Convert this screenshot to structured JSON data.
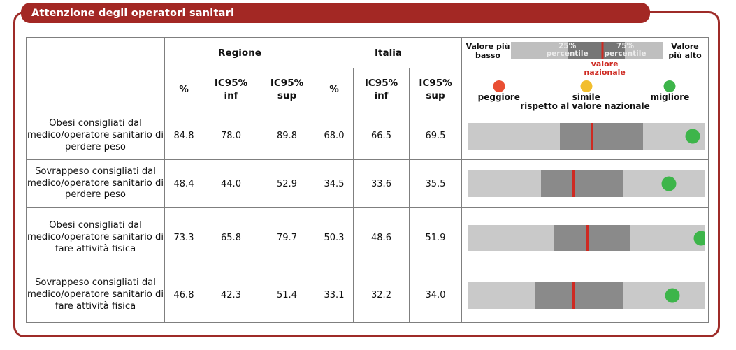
{
  "title": "Attenzione degli operatori sanitari",
  "header": {
    "regione": "Regione",
    "italia": "Italia",
    "pct": "%",
    "ic_inf": "IC95%\ninf",
    "ic_sup": "IC95%\nsup"
  },
  "legend": {
    "left_label": "Valore più basso",
    "right_label": "Valore più alto",
    "q25_label": "25% percentile",
    "q75_label": "75% percentile",
    "national_label": "valore nazionale",
    "footnote": "rispetto al valore nazionale",
    "dots": [
      {
        "color": "red",
        "label": "peggiore"
      },
      {
        "color": "yellow",
        "label": "simile"
      },
      {
        "color": "green",
        "label": "migliore"
      }
    ],
    "bar": {
      "q25_pct": 37,
      "q75_pct": 75,
      "national_pct": 60
    }
  },
  "colors": {
    "accent_red": "#A32824",
    "national_line": "#CE2A22",
    "red": "#E94F33",
    "yellow": "#F2BE2E",
    "green": "#3DB54A",
    "bar_light": "#C9C9C9",
    "bar_dark": "#8A8A8A"
  },
  "rows": [
    {
      "label": "Obesi consigliati dal medico/operatore sanitario di perdere peso",
      "regione": {
        "pct": "84.8",
        "inf": "78.0",
        "sup": "89.8"
      },
      "italia": {
        "pct": "68.0",
        "inf": "66.5",
        "sup": "69.5"
      },
      "bar": {
        "q25_pct": 39,
        "q75_pct": 74,
        "national_pct": 52.5,
        "dot_pct": 95,
        "dot_color": "green"
      }
    },
    {
      "label": "Sovrappeso consigliati dal medico/operatore sanitario di perdere peso",
      "regione": {
        "pct": "48.4",
        "inf": "44.0",
        "sup": "52.9"
      },
      "italia": {
        "pct": "34.5",
        "inf": "33.6",
        "sup": "35.5"
      },
      "bar": {
        "q25_pct": 31,
        "q75_pct": 65.5,
        "national_pct": 44.7,
        "dot_pct": 85,
        "dot_color": "green"
      }
    },
    {
      "label": "Obesi consigliati dal medico/operatore sanitario di fare attività fisica",
      "regione": {
        "pct": "73.3",
        "inf": "65.8",
        "sup": "79.7"
      },
      "italia": {
        "pct": "50.3",
        "inf": "48.6",
        "sup": "51.9"
      },
      "bar": {
        "q25_pct": 36.7,
        "q75_pct": 68.8,
        "national_pct": 50.4,
        "dot_pct": 98.5,
        "dot_color": "green"
      }
    },
    {
      "label": "Sovrappeso consigliati dal medico/operatore sanitario di fare attività fisica",
      "regione": {
        "pct": "46.8",
        "inf": "42.3",
        "sup": "51.4"
      },
      "italia": {
        "pct": "33.1",
        "inf": "32.2",
        "sup": "34.0"
      },
      "bar": {
        "q25_pct": 28.7,
        "q75_pct": 65.4,
        "national_pct": 44.9,
        "dot_pct": 86.5,
        "dot_color": "green"
      }
    }
  ],
  "chart_data": {
    "type": "table",
    "title": "Attenzione degli operatori sanitari",
    "column_groups": [
      "Regione",
      "Italia"
    ],
    "columns": [
      "%",
      "IC95% inf",
      "IC95% sup",
      "%",
      "IC95% inf",
      "IC95% sup"
    ],
    "rows": [
      {
        "label": "Obesi consigliati dal medico/operatore sanitario di perdere peso",
        "regione": [
          84.8,
          78.0,
          89.8
        ],
        "italia": [
          68.0,
          66.5,
          69.5
        ],
        "confronto_nazionale": "migliore"
      },
      {
        "label": "Sovrappeso consigliati dal medico/operatore sanitario di perdere peso",
        "regione": [
          48.4,
          44.0,
          52.9
        ],
        "italia": [
          34.5,
          33.6,
          35.5
        ],
        "confronto_nazionale": "migliore"
      },
      {
        "label": "Obesi consigliati dal medico/operatore sanitario di fare attività fisica",
        "regione": [
          73.3,
          65.8,
          79.7
        ],
        "italia": [
          50.3,
          48.6,
          51.9
        ],
        "confronto_nazionale": "migliore"
      },
      {
        "label": "Sovrappeso consigliati dal medico/operatore sanitario di fare attività fisica",
        "regione": [
          46.8,
          42.3,
          51.4
        ],
        "italia": [
          33.1,
          32.2,
          34.0
        ],
        "confronto_nazionale": "migliore"
      }
    ],
    "legend_entries": [
      "Valore più basso",
      "25% percentile",
      "75% percentile",
      "Valore più alto",
      "valore nazionale",
      "peggiore",
      "simile",
      "migliore",
      "rispetto al valore nazionale"
    ]
  }
}
